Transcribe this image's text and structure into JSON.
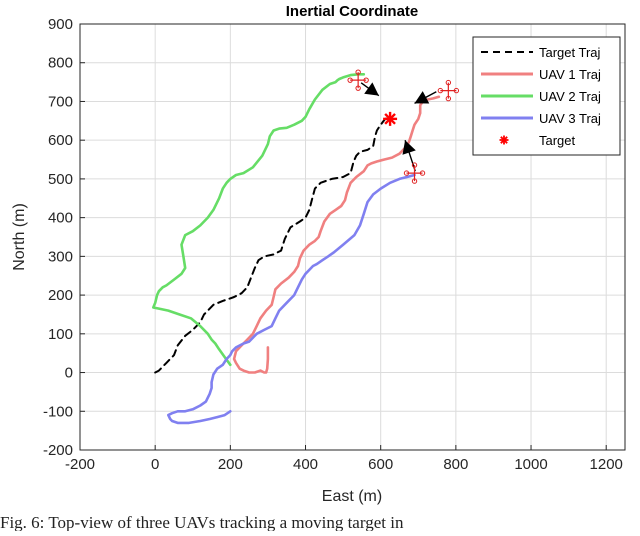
{
  "chart_data": {
    "type": "line",
    "title": "Inertial Coordinate",
    "xlabel": "East (m)",
    "ylabel": "North (m)",
    "xlim": [
      -200,
      1250
    ],
    "ylim": [
      -200,
      900
    ],
    "xticks": [
      -200,
      0,
      200,
      400,
      600,
      800,
      1000,
      1200
    ],
    "yticks": [
      -200,
      -100,
      0,
      100,
      200,
      300,
      400,
      500,
      600,
      700,
      800,
      900
    ],
    "grid": true,
    "legend_position": "top-right",
    "series": [
      {
        "name": "Target Traj",
        "color": "#000000",
        "style": "dashed",
        "x": [
          0,
          10,
          30,
          50,
          60,
          80,
          100,
          120,
          130,
          155,
          180,
          195,
          210,
          230,
          245,
          255,
          265,
          275,
          290,
          315,
          335,
          345,
          360,
          385,
          400,
          410,
          418,
          425,
          440,
          470,
          500,
          520,
          528,
          535,
          545,
          565,
          580,
          585,
          590,
          600,
          612,
          625
        ],
        "y": [
          0,
          5,
          25,
          45,
          70,
          95,
          110,
          130,
          150,
          175,
          185,
          190,
          195,
          205,
          220,
          245,
          270,
          290,
          300,
          305,
          315,
          345,
          375,
          390,
          400,
          420,
          450,
          475,
          490,
          500,
          505,
          515,
          545,
          560,
          570,
          575,
          585,
          610,
          625,
          640,
          655,
          660
        ]
      },
      {
        "name": "UAV 1 Traj",
        "color": "#f08080",
        "style": "solid",
        "x": [
          300,
          300,
          298,
          295,
          290,
          280,
          265,
          250,
          235,
          225,
          215,
          210,
          215,
          230,
          245,
          260,
          270,
          280,
          295,
          310,
          315,
          320,
          335,
          355,
          370,
          380,
          385,
          395,
          410,
          425,
          435,
          440,
          450,
          465,
          480,
          495,
          505,
          510,
          520,
          535,
          555,
          565,
          575,
          590,
          610,
          630,
          650,
          665,
          675,
          680,
          685,
          690,
          700,
          705,
          705,
          712,
          725,
          740,
          755
        ],
        "y": [
          65,
          35,
          10,
          0,
          0,
          5,
          0,
          0,
          5,
          10,
          25,
          35,
          55,
          70,
          85,
          100,
          120,
          140,
          160,
          175,
          195,
          215,
          230,
          245,
          260,
          275,
          295,
          315,
          330,
          340,
          350,
          365,
          390,
          410,
          420,
          430,
          445,
          465,
          490,
          505,
          520,
          535,
          540,
          545,
          550,
          555,
          565,
          580,
          595,
          610,
          625,
          640,
          655,
          670,
          690,
          700,
          705,
          708,
          712
        ]
      },
      {
        "name": "UAV 2 Traj",
        "color": "#66dd66",
        "style": "solid",
        "x": [
          200,
          185,
          170,
          160,
          150,
          140,
          120,
          95,
          65,
          35,
          10,
          -5,
          0,
          5,
          10,
          20,
          30,
          50,
          70,
          80,
          75,
          70,
          80,
          100,
          120,
          140,
          155,
          170,
          180,
          190,
          200,
          215,
          235,
          260,
          285,
          300,
          305,
          315,
          330,
          350,
          370,
          390,
          400,
          410,
          425,
          445,
          465,
          480,
          485,
          490,
          500,
          520,
          540,
          555
        ],
        "y": [
          20,
          40,
          60,
          75,
          85,
          100,
          120,
          140,
          150,
          160,
          165,
          168,
          180,
          200,
          210,
          220,
          225,
          240,
          255,
          270,
          300,
          330,
          355,
          365,
          380,
          400,
          420,
          450,
          475,
          490,
          500,
          510,
          515,
          530,
          560,
          590,
          610,
          625,
          630,
          632,
          640,
          650,
          660,
          680,
          705,
          730,
          745,
          750,
          755,
          758,
          762,
          768,
          770,
          770
        ]
      },
      {
        "name": "UAV 3 Traj",
        "color": "#8080f0",
        "style": "solid",
        "x": [
          200,
          185,
          165,
          145,
          120,
          90,
          60,
          45,
          40,
          35,
          45,
          60,
          80,
          100,
          120,
          135,
          145,
          150,
          150,
          155,
          165,
          180,
          190,
          200,
          205,
          215,
          235,
          250,
          260,
          270,
          290,
          310,
          320,
          330,
          350,
          370,
          380,
          390,
          400,
          410,
          420,
          430,
          445,
          460,
          475,
          500,
          530,
          545,
          555,
          565,
          580,
          600,
          625,
          650,
          670,
          690
        ],
        "y": [
          -100,
          -110,
          -115,
          -120,
          -125,
          -130,
          -130,
          -125,
          -120,
          -110,
          -105,
          -100,
          -100,
          -95,
          -85,
          -75,
          -55,
          -40,
          -25,
          -5,
          10,
          20,
          35,
          45,
          55,
          65,
          75,
          80,
          90,
          100,
          110,
          120,
          140,
          160,
          180,
          200,
          220,
          240,
          255,
          265,
          275,
          280,
          290,
          300,
          310,
          330,
          355,
          380,
          410,
          440,
          460,
          475,
          490,
          500,
          505,
          510
        ]
      },
      {
        "name": "Target",
        "color": "#ff0000",
        "style": "marker",
        "marker": "asterisk",
        "x": [
          625
        ],
        "y": [
          655
        ]
      }
    ],
    "uav_markers": [
      {
        "x": 540,
        "y": 755
      },
      {
        "x": 780,
        "y": 728
      },
      {
        "x": 690,
        "y": 515
      }
    ],
    "heading_arrows": [
      {
        "x1": 548,
        "y1": 748,
        "x2": 595,
        "y2": 715
      },
      {
        "x1": 748,
        "y1": 725,
        "x2": 690,
        "y2": 695
      },
      {
        "x1": 692,
        "y1": 520,
        "x2": 665,
        "y2": 600
      }
    ]
  },
  "caption": {
    "text": "Fig. 6: Top-view of three UAVs tracking a moving target in"
  }
}
